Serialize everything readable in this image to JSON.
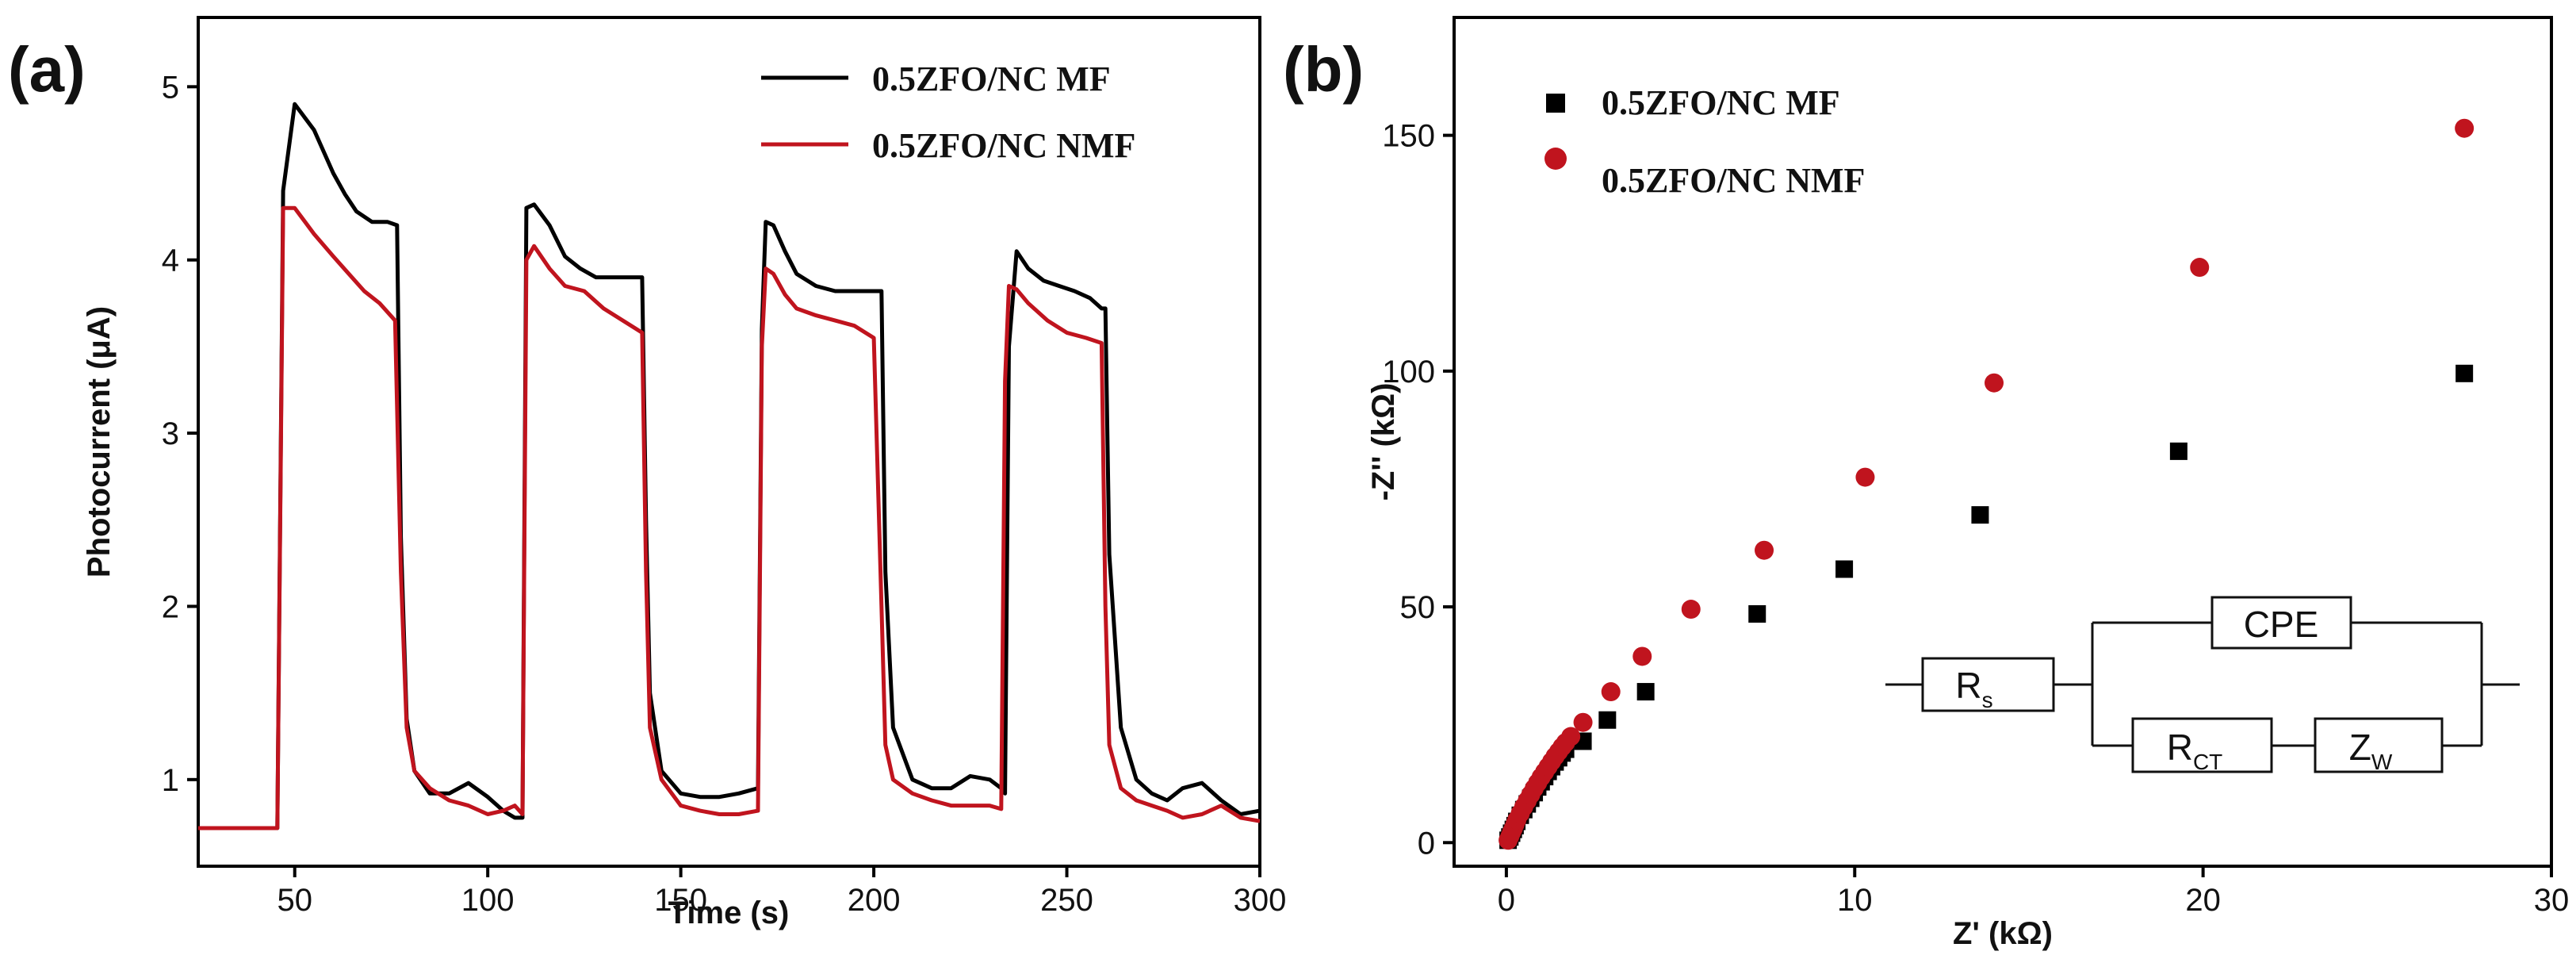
{
  "chart_data": [
    {
      "panel": "(a)",
      "type": "line",
      "xlabel": "Time (s)",
      "ylabel": "Photocurrent (μA)",
      "xlim": [
        25,
        300
      ],
      "ylim": [
        0.5,
        5.4
      ],
      "xticks": [
        50,
        100,
        150,
        200,
        250,
        300
      ],
      "yticks": [
        1,
        2,
        3,
        4,
        5
      ],
      "legend": [
        "0.5ZFO/NC MF",
        "0.5ZFO/NC NMF"
      ],
      "series": [
        {
          "name": "0.5ZFO/NC MF",
          "color": "#000000",
          "x": [
            25,
            44,
            45.5,
            47,
            50,
            55,
            60,
            63,
            66,
            70,
            74,
            76.5,
            77.5,
            79,
            81,
            85,
            90,
            95,
            100,
            104,
            107,
            109,
            110,
            112,
            116,
            120,
            124,
            128,
            132,
            136,
            140,
            141,
            142,
            145,
            150,
            155,
            160,
            165,
            170,
            171,
            172,
            174,
            177,
            180,
            185,
            190,
            195,
            200,
            202,
            203,
            205,
            210,
            215,
            220,
            225,
            230,
            233,
            234,
            235,
            237,
            240,
            244,
            248,
            252,
            256,
            259,
            260,
            261,
            264,
            268,
            272,
            276,
            280,
            285,
            290,
            295,
            300
          ],
          "y": [
            0.72,
            0.72,
            0.72,
            4.4,
            4.9,
            4.75,
            4.5,
            4.38,
            4.28,
            4.22,
            4.22,
            4.2,
            2.4,
            1.35,
            1.05,
            0.92,
            0.92,
            0.98,
            0.9,
            0.82,
            0.78,
            0.78,
            4.3,
            4.32,
            4.2,
            4.02,
            3.95,
            3.9,
            3.9,
            3.9,
            3.9,
            2.5,
            1.5,
            1.05,
            0.92,
            0.9,
            0.9,
            0.92,
            0.95,
            3.6,
            4.22,
            4.2,
            4.05,
            3.92,
            3.85,
            3.82,
            3.82,
            3.82,
            3.82,
            2.2,
            1.3,
            1.0,
            0.95,
            0.95,
            1.02,
            1.0,
            0.95,
            0.92,
            3.5,
            4.05,
            3.95,
            3.88,
            3.85,
            3.82,
            3.78,
            3.72,
            3.72,
            2.3,
            1.3,
            1.0,
            0.92,
            0.88,
            0.95,
            0.98,
            0.88,
            0.8,
            0.82
          ]
        },
        {
          "name": "0.5ZFO/NC NMF",
          "color": "#C0141E",
          "x": [
            25,
            44,
            45.5,
            47,
            50,
            55,
            60,
            64,
            68,
            72,
            76,
            77.5,
            79,
            81,
            85,
            90,
            95,
            100,
            104,
            107,
            109,
            110,
            112,
            116,
            120,
            125,
            130,
            135,
            140,
            141,
            142,
            145,
            150,
            155,
            160,
            165,
            170,
            171,
            172,
            174,
            177,
            180,
            185,
            190,
            195,
            200,
            202,
            203,
            205,
            210,
            215,
            220,
            225,
            230,
            233,
            234,
            235,
            237,
            240,
            245,
            250,
            255,
            259,
            260,
            261,
            264,
            268,
            272,
            276,
            280,
            285,
            290,
            295,
            300
          ],
          "y": [
            0.72,
            0.72,
            0.72,
            4.3,
            4.3,
            4.15,
            4.02,
            3.92,
            3.82,
            3.75,
            3.65,
            2.2,
            1.3,
            1.05,
            0.95,
            0.88,
            0.85,
            0.8,
            0.82,
            0.85,
            0.8,
            4.0,
            4.08,
            3.95,
            3.85,
            3.82,
            3.72,
            3.65,
            3.58,
            2.2,
            1.3,
            1.0,
            0.85,
            0.82,
            0.8,
            0.8,
            0.82,
            3.5,
            3.95,
            3.92,
            3.8,
            3.72,
            3.68,
            3.65,
            3.62,
            3.55,
            2.0,
            1.2,
            1.0,
            0.92,
            0.88,
            0.85,
            0.85,
            0.85,
            0.83,
            3.3,
            3.85,
            3.83,
            3.75,
            3.65,
            3.58,
            3.55,
            3.52,
            2.0,
            1.2,
            0.95,
            0.88,
            0.85,
            0.82,
            0.78,
            0.8,
            0.85,
            0.78,
            0.76
          ]
        }
      ]
    },
    {
      "panel": "(b)",
      "type": "scatter",
      "xlabel": "Z' (kΩ)",
      "ylabel": "-Z'' (kΩ)",
      "xlim": [
        -1.5,
        30
      ],
      "ylim": [
        -5,
        175
      ],
      "xticks": [
        0,
        10,
        20,
        30
      ],
      "yticks": [
        0,
        50,
        100,
        150
      ],
      "legend": [
        "0.5ZFO/NC MF",
        "0.5ZFO/NC NMF"
      ],
      "series": [
        {
          "name": "0.5ZFO/NC MF",
          "marker": "square",
          "color": "#000000",
          "x": [
            0.05,
            0.1,
            0.15,
            0.2,
            0.25,
            0.3,
            0.4,
            0.5,
            0.6,
            0.7,
            0.8,
            0.9,
            1.0,
            1.1,
            1.2,
            1.3,
            1.4,
            1.5,
            1.6,
            1.7,
            2.2,
            2.9,
            4.0,
            7.2,
            9.7,
            13.6,
            19.3,
            27.5
          ],
          "y": [
            0.5,
            1.2,
            2.0,
            2.8,
            3.6,
            4.5,
            5.8,
            7.0,
            8.2,
            9.4,
            10.6,
            11.8,
            12.9,
            14.0,
            15.1,
            16.1,
            17.1,
            18.0,
            19.0,
            19.8,
            21.5,
            26.0,
            32.0,
            48.5,
            58.0,
            69.5,
            83.0,
            99.5
          ]
        },
        {
          "name": "0.5ZFO/NC NMF",
          "marker": "circle",
          "color": "#C0141E",
          "x": [
            0.05,
            0.1,
            0.15,
            0.2,
            0.25,
            0.3,
            0.4,
            0.5,
            0.6,
            0.7,
            0.8,
            0.9,
            1.0,
            1.1,
            1.2,
            1.3,
            1.4,
            1.5,
            1.6,
            1.7,
            1.85,
            2.2,
            3.0,
            3.9,
            5.3,
            7.4,
            10.3,
            14.0,
            19.9,
            27.5
          ],
          "y": [
            0.5,
            1.3,
            2.2,
            3.0,
            3.9,
            4.8,
            6.2,
            7.6,
            8.9,
            10.2,
            11.5,
            12.7,
            13.9,
            15.0,
            16.1,
            17.2,
            18.3,
            19.3,
            20.3,
            21.2,
            22.5,
            25.5,
            32.0,
            39.5,
            49.5,
            62.0,
            77.5,
            97.5,
            122.0,
            151.5
          ]
        }
      ],
      "inset": {
        "type": "equivalent-circuit",
        "rs": "R",
        "rs_sub": "s",
        "cpe": "CPE",
        "rct": "R",
        "rct_sub": "CT",
        "zw": "Z",
        "zw_sub": "W"
      }
    }
  ]
}
